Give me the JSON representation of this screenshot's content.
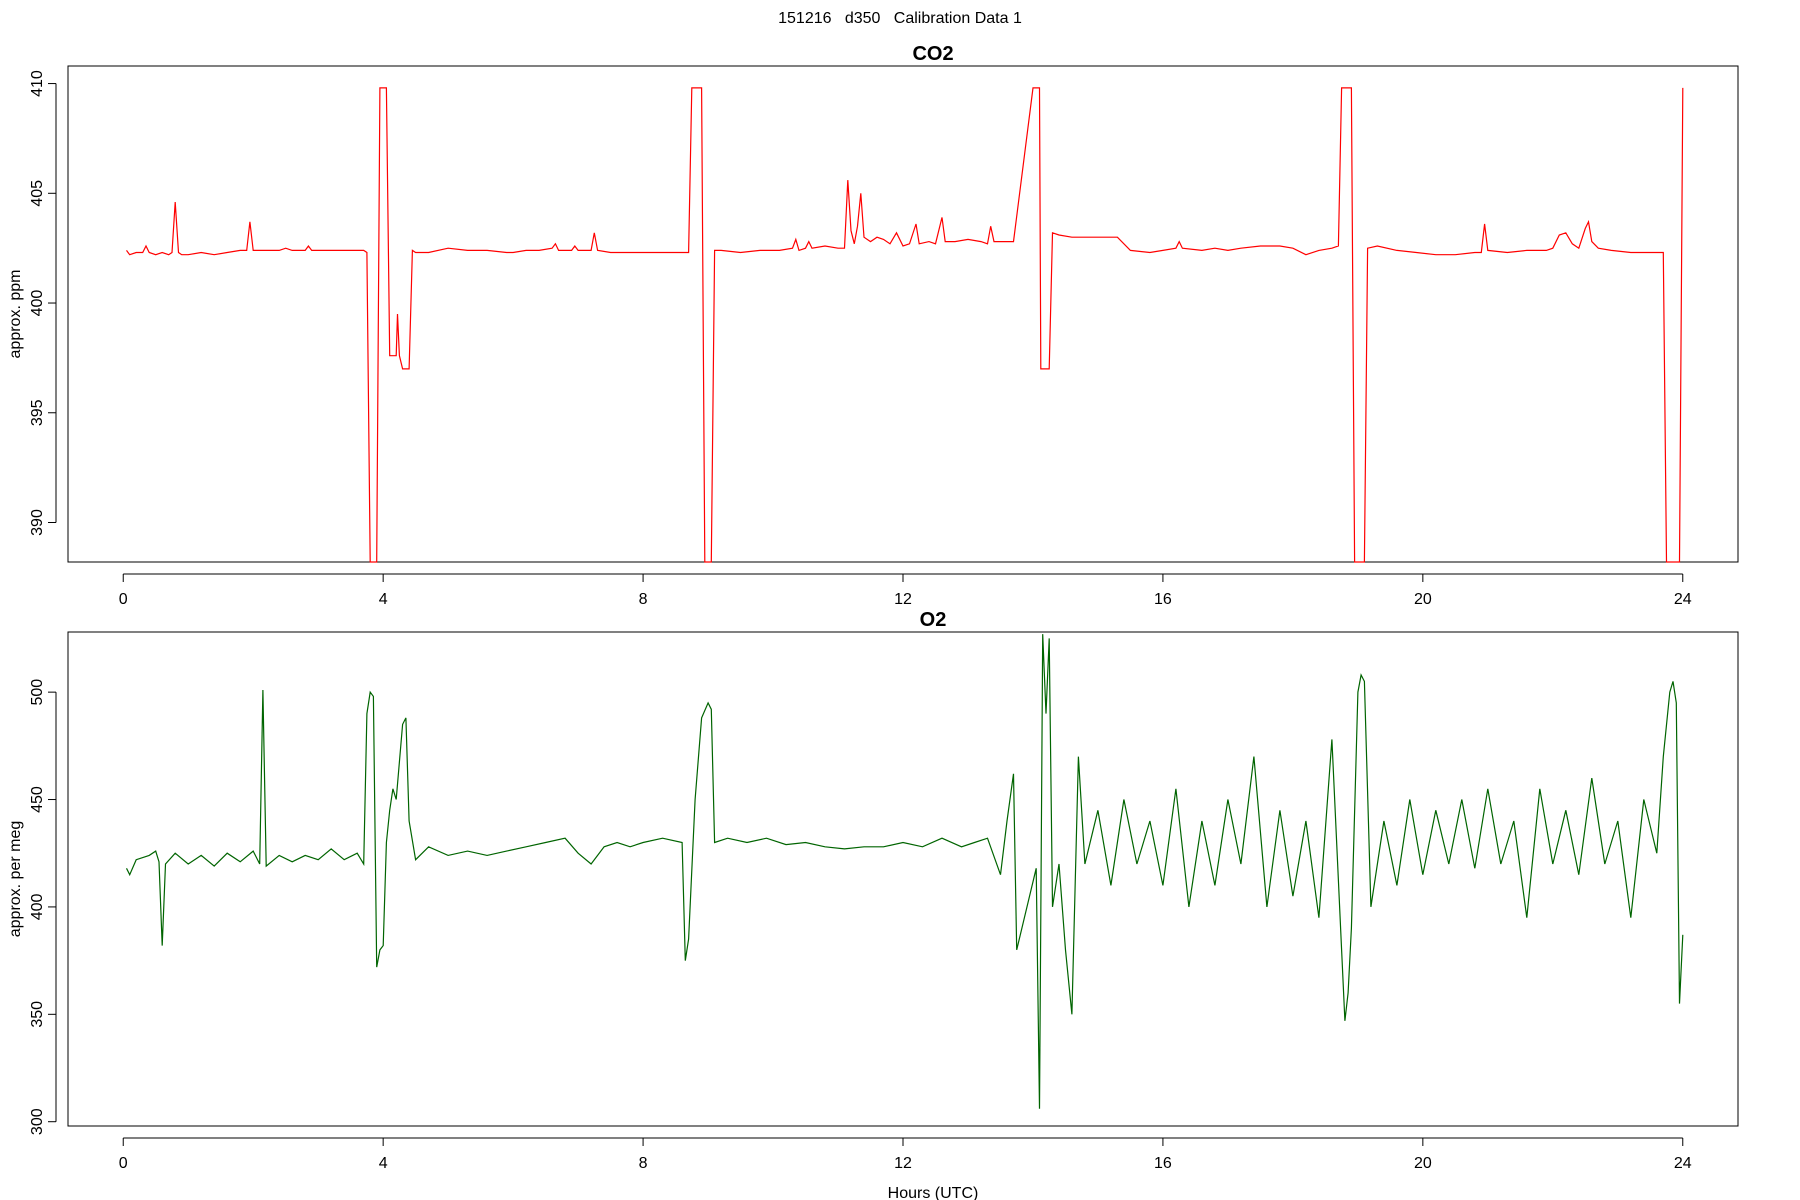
{
  "figure": {
    "title": "151216   d350   Calibration Data 1"
  },
  "chart_data": [
    {
      "type": "line",
      "title": "CO2",
      "xlabel": "",
      "ylabel": "approx. ppm",
      "xlim": [
        -0.85,
        24.85
      ],
      "ylim": [
        388.2,
        410.8
      ],
      "xticks": [
        0,
        4,
        8,
        12,
        16,
        20,
        24
      ],
      "yticks": [
        390,
        395,
        400,
        405,
        410
      ],
      "color": "#ff0000",
      "points": [
        [
          0.05,
          402.4
        ],
        [
          0.1,
          402.2
        ],
        [
          0.2,
          402.3
        ],
        [
          0.3,
          402.3
        ],
        [
          0.35,
          402.6
        ],
        [
          0.4,
          402.3
        ],
        [
          0.5,
          402.2
        ],
        [
          0.6,
          402.3
        ],
        [
          0.7,
          402.2
        ],
        [
          0.75,
          402.3
        ],
        [
          0.8,
          404.6
        ],
        [
          0.85,
          402.3
        ],
        [
          0.9,
          402.2
        ],
        [
          1.0,
          402.2
        ],
        [
          1.2,
          402.3
        ],
        [
          1.4,
          402.2
        ],
        [
          1.6,
          402.3
        ],
        [
          1.8,
          402.4
        ],
        [
          1.9,
          402.4
        ],
        [
          1.95,
          403.7
        ],
        [
          2.0,
          402.4
        ],
        [
          2.2,
          402.4
        ],
        [
          2.4,
          402.4
        ],
        [
          2.5,
          402.5
        ],
        [
          2.6,
          402.4
        ],
        [
          2.8,
          402.4
        ],
        [
          2.85,
          402.6
        ],
        [
          2.9,
          402.4
        ],
        [
          3.0,
          402.4
        ],
        [
          3.3,
          402.4
        ],
        [
          3.5,
          402.4
        ],
        [
          3.7,
          402.4
        ],
        [
          3.75,
          402.3
        ],
        [
          3.8,
          388.2
        ],
        [
          3.9,
          388.2
        ],
        [
          3.95,
          409.8
        ],
        [
          4.0,
          409.8
        ],
        [
          4.05,
          409.8
        ],
        [
          4.1,
          397.6
        ],
        [
          4.2,
          397.6
        ],
        [
          4.22,
          399.5
        ],
        [
          4.25,
          397.6
        ],
        [
          4.3,
          397.0
        ],
        [
          4.4,
          397.0
        ],
        [
          4.45,
          402.4
        ],
        [
          4.5,
          402.3
        ],
        [
          4.7,
          402.3
        ],
        [
          5.0,
          402.5
        ],
        [
          5.3,
          402.4
        ],
        [
          5.6,
          402.4
        ],
        [
          5.9,
          402.3
        ],
        [
          6.0,
          402.3
        ],
        [
          6.2,
          402.4
        ],
        [
          6.4,
          402.4
        ],
        [
          6.6,
          402.5
        ],
        [
          6.65,
          402.7
        ],
        [
          6.7,
          402.4
        ],
        [
          6.9,
          402.4
        ],
        [
          6.95,
          402.6
        ],
        [
          7.0,
          402.4
        ],
        [
          7.2,
          402.4
        ],
        [
          7.25,
          403.2
        ],
        [
          7.3,
          402.4
        ],
        [
          7.5,
          402.3
        ],
        [
          7.8,
          402.3
        ],
        [
          8.1,
          402.3
        ],
        [
          8.4,
          402.3
        ],
        [
          8.6,
          402.3
        ],
        [
          8.7,
          402.3
        ],
        [
          8.75,
          409.8
        ],
        [
          8.85,
          409.8
        ],
        [
          8.9,
          409.8
        ],
        [
          8.95,
          388.2
        ],
        [
          9.05,
          388.2
        ],
        [
          9.1,
          402.4
        ],
        [
          9.2,
          402.4
        ],
        [
          9.5,
          402.3
        ],
        [
          9.8,
          402.4
        ],
        [
          10.1,
          402.4
        ],
        [
          10.3,
          402.5
        ],
        [
          10.35,
          402.9
        ],
        [
          10.4,
          402.4
        ],
        [
          10.5,
          402.5
        ],
        [
          10.55,
          402.8
        ],
        [
          10.6,
          402.5
        ],
        [
          10.8,
          402.6
        ],
        [
          11.0,
          402.5
        ],
        [
          11.1,
          402.5
        ],
        [
          11.15,
          405.6
        ],
        [
          11.2,
          403.3
        ],
        [
          11.25,
          402.7
        ],
        [
          11.3,
          403.5
        ],
        [
          11.35,
          405.0
        ],
        [
          11.4,
          403.0
        ],
        [
          11.5,
          402.8
        ],
        [
          11.6,
          403.0
        ],
        [
          11.7,
          402.9
        ],
        [
          11.8,
          402.7
        ],
        [
          11.9,
          403.2
        ],
        [
          12.0,
          402.6
        ],
        [
          12.1,
          402.7
        ],
        [
          12.2,
          403.6
        ],
        [
          12.25,
          402.7
        ],
        [
          12.4,
          402.8
        ],
        [
          12.5,
          402.7
        ],
        [
          12.6,
          403.9
        ],
        [
          12.65,
          402.8
        ],
        [
          12.8,
          402.8
        ],
        [
          13.0,
          402.9
        ],
        [
          13.2,
          402.8
        ],
        [
          13.3,
          402.7
        ],
        [
          13.35,
          403.5
        ],
        [
          13.4,
          402.8
        ],
        [
          13.6,
          402.8
        ],
        [
          13.7,
          402.8
        ],
        [
          14.0,
          409.8
        ],
        [
          14.1,
          409.8
        ],
        [
          14.12,
          397.0
        ],
        [
          14.25,
          397.0
        ],
        [
          14.3,
          403.2
        ],
        [
          14.4,
          403.1
        ],
        [
          14.6,
          403.0
        ],
        [
          15.0,
          403.0
        ],
        [
          15.3,
          403.0
        ],
        [
          15.5,
          402.4
        ],
        [
          15.8,
          402.3
        ],
        [
          16.0,
          402.4
        ],
        [
          16.2,
          402.5
        ],
        [
          16.25,
          402.8
        ],
        [
          16.3,
          402.5
        ],
        [
          16.6,
          402.4
        ],
        [
          16.8,
          402.5
        ],
        [
          17.0,
          402.4
        ],
        [
          17.2,
          402.5
        ],
        [
          17.5,
          402.6
        ],
        [
          17.8,
          402.6
        ],
        [
          18.0,
          402.5
        ],
        [
          18.2,
          402.2
        ],
        [
          18.4,
          402.4
        ],
        [
          18.6,
          402.5
        ],
        [
          18.7,
          402.6
        ],
        [
          18.75,
          409.8
        ],
        [
          18.9,
          409.8
        ],
        [
          18.95,
          388.2
        ],
        [
          19.1,
          388.2
        ],
        [
          19.15,
          402.5
        ],
        [
          19.3,
          402.6
        ],
        [
          19.6,
          402.4
        ],
        [
          19.9,
          402.3
        ],
        [
          20.2,
          402.2
        ],
        [
          20.5,
          402.2
        ],
        [
          20.8,
          402.3
        ],
        [
          20.9,
          402.3
        ],
        [
          20.95,
          403.6
        ],
        [
          21.0,
          402.4
        ],
        [
          21.3,
          402.3
        ],
        [
          21.6,
          402.4
        ],
        [
          21.9,
          402.4
        ],
        [
          22.0,
          402.5
        ],
        [
          22.1,
          403.1
        ],
        [
          22.2,
          403.2
        ],
        [
          22.3,
          402.7
        ],
        [
          22.4,
          402.5
        ],
        [
          22.5,
          403.4
        ],
        [
          22.55,
          403.7
        ],
        [
          22.6,
          402.8
        ],
        [
          22.7,
          402.5
        ],
        [
          22.9,
          402.4
        ],
        [
          23.2,
          402.3
        ],
        [
          23.5,
          402.3
        ],
        [
          23.7,
          402.3
        ],
        [
          23.75,
          388.2
        ],
        [
          23.95,
          388.2
        ],
        [
          24.0,
          409.8
        ]
      ]
    },
    {
      "type": "line",
      "title": "O2",
      "xlabel": "Hours (UTC)",
      "ylabel": "approx. per meg",
      "xlim": [
        -0.85,
        24.85
      ],
      "ylim": [
        298,
        528
      ],
      "xticks": [
        0,
        4,
        8,
        12,
        16,
        20,
        24
      ],
      "yticks": [
        300,
        350,
        400,
        450,
        500
      ],
      "color": "#006400",
      "points": [
        [
          0.05,
          418
        ],
        [
          0.1,
          415
        ],
        [
          0.2,
          422
        ],
        [
          0.4,
          424
        ],
        [
          0.5,
          426
        ],
        [
          0.55,
          421
        ],
        [
          0.6,
          382
        ],
        [
          0.65,
          420
        ],
        [
          0.8,
          425
        ],
        [
          1.0,
          420
        ],
        [
          1.2,
          424
        ],
        [
          1.4,
          419
        ],
        [
          1.6,
          425
        ],
        [
          1.8,
          421
        ],
        [
          2.0,
          426
        ],
        [
          2.1,
          420
        ],
        [
          2.15,
          501
        ],
        [
          2.2,
          419
        ],
        [
          2.4,
          424
        ],
        [
          2.6,
          421
        ],
        [
          2.8,
          424
        ],
        [
          3.0,
          422
        ],
        [
          3.2,
          427
        ],
        [
          3.4,
          422
        ],
        [
          3.6,
          425
        ],
        [
          3.7,
          420
        ],
        [
          3.75,
          490
        ],
        [
          3.8,
          500
        ],
        [
          3.85,
          498
        ],
        [
          3.9,
          372
        ],
        [
          3.95,
          380
        ],
        [
          4.0,
          382
        ],
        [
          4.05,
          430
        ],
        [
          4.1,
          445
        ],
        [
          4.15,
          455
        ],
        [
          4.2,
          450
        ],
        [
          4.3,
          485
        ],
        [
          4.35,
          488
        ],
        [
          4.4,
          440
        ],
        [
          4.5,
          422
        ],
        [
          4.7,
          428
        ],
        [
          5.0,
          424
        ],
        [
          5.3,
          426
        ],
        [
          5.6,
          424
        ],
        [
          5.9,
          426
        ],
        [
          6.2,
          428
        ],
        [
          6.5,
          430
        ],
        [
          6.8,
          432
        ],
        [
          7.0,
          425
        ],
        [
          7.2,
          420
        ],
        [
          7.4,
          428
        ],
        [
          7.6,
          430
        ],
        [
          7.8,
          428
        ],
        [
          8.0,
          430
        ],
        [
          8.3,
          432
        ],
        [
          8.6,
          430
        ],
        [
          8.65,
          375
        ],
        [
          8.7,
          385
        ],
        [
          8.8,
          450
        ],
        [
          8.9,
          488
        ],
        [
          9.0,
          495
        ],
        [
          9.05,
          492
        ],
        [
          9.1,
          430
        ],
        [
          9.3,
          432
        ],
        [
          9.6,
          430
        ],
        [
          9.9,
          432
        ],
        [
          10.2,
          429
        ],
        [
          10.5,
          430
        ],
        [
          10.8,
          428
        ],
        [
          11.1,
          427
        ],
        [
          11.4,
          428
        ],
        [
          11.7,
          428
        ],
        [
          12.0,
          430
        ],
        [
          12.3,
          428
        ],
        [
          12.6,
          432
        ],
        [
          12.9,
          428
        ],
        [
          13.1,
          430
        ],
        [
          13.3,
          432
        ],
        [
          13.5,
          415
        ],
        [
          13.6,
          440
        ],
        [
          13.7,
          462
        ],
        [
          13.75,
          380
        ],
        [
          14.05,
          418
        ],
        [
          14.1,
          306
        ],
        [
          14.15,
          527
        ],
        [
          14.2,
          490
        ],
        [
          14.25,
          525
        ],
        [
          14.3,
          400
        ],
        [
          14.4,
          420
        ],
        [
          14.5,
          380
        ],
        [
          14.6,
          350
        ],
        [
          14.7,
          470
        ],
        [
          14.8,
          420
        ],
        [
          15.0,
          445
        ],
        [
          15.2,
          410
        ],
        [
          15.4,
          450
        ],
        [
          15.6,
          420
        ],
        [
          15.8,
          440
        ],
        [
          16.0,
          410
        ],
        [
          16.2,
          455
        ],
        [
          16.4,
          400
        ],
        [
          16.6,
          440
        ],
        [
          16.8,
          410
        ],
        [
          17.0,
          450
        ],
        [
          17.2,
          420
        ],
        [
          17.4,
          470
        ],
        [
          17.6,
          400
        ],
        [
          17.8,
          445
        ],
        [
          18.0,
          405
        ],
        [
          18.2,
          440
        ],
        [
          18.4,
          395
        ],
        [
          18.6,
          478
        ],
        [
          18.75,
          380
        ],
        [
          18.8,
          347
        ],
        [
          18.85,
          360
        ],
        [
          18.9,
          390
        ],
        [
          19.0,
          500
        ],
        [
          19.05,
          508
        ],
        [
          19.1,
          505
        ],
        [
          19.2,
          400
        ],
        [
          19.4,
          440
        ],
        [
          19.6,
          410
        ],
        [
          19.8,
          450
        ],
        [
          20.0,
          415
        ],
        [
          20.2,
          445
        ],
        [
          20.4,
          420
        ],
        [
          20.6,
          450
        ],
        [
          20.8,
          418
        ],
        [
          21.0,
          455
        ],
        [
          21.2,
          420
        ],
        [
          21.4,
          440
        ],
        [
          21.6,
          395
        ],
        [
          21.8,
          455
        ],
        [
          22.0,
          420
        ],
        [
          22.2,
          445
        ],
        [
          22.4,
          415
        ],
        [
          22.6,
          460
        ],
        [
          22.8,
          420
        ],
        [
          23.0,
          440
        ],
        [
          23.2,
          395
        ],
        [
          23.4,
          450
        ],
        [
          23.6,
          425
        ],
        [
          23.7,
          470
        ],
        [
          23.8,
          500
        ],
        [
          23.85,
          505
        ],
        [
          23.9,
          495
        ],
        [
          23.95,
          355
        ],
        [
          24.0,
          387
        ]
      ]
    }
  ]
}
